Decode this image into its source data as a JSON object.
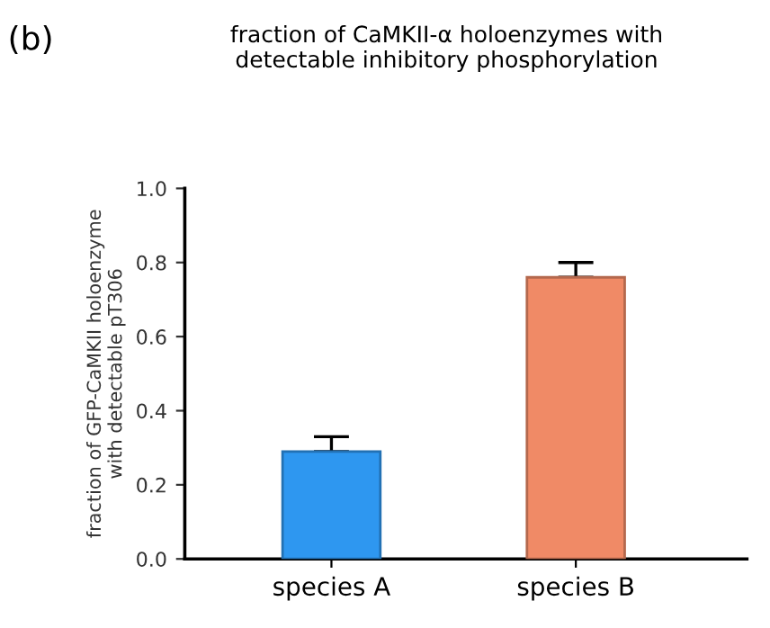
{
  "chart_data": {
    "type": "bar",
    "title": "fraction of CaMKII-α holoenzymes with\ndetectable inhibitory phosphorylation",
    "ylabel": "fraction of GFP-CaMKII holoenzyme\nwith detectable pT306",
    "annotations": [
      "(b)"
    ],
    "categories": [
      "species A",
      "species B"
    ],
    "values": [
      0.29,
      0.76
    ],
    "colors": [
      "#2e97f0",
      "#f08a66"
    ],
    "errors": [
      [
        0.29,
        0.33
      ],
      [
        0.76,
        0.8
      ]
    ],
    "ylim": [
      0,
      1.0
    ],
    "yticks": [
      {
        "value": 0,
        "label": "0.0"
      },
      0.2,
      0.4,
      0.6,
      0.8,
      {
        "value": 1.0,
        "label": "1.0"
      }
    ],
    "grid": false,
    "legend": false
  }
}
